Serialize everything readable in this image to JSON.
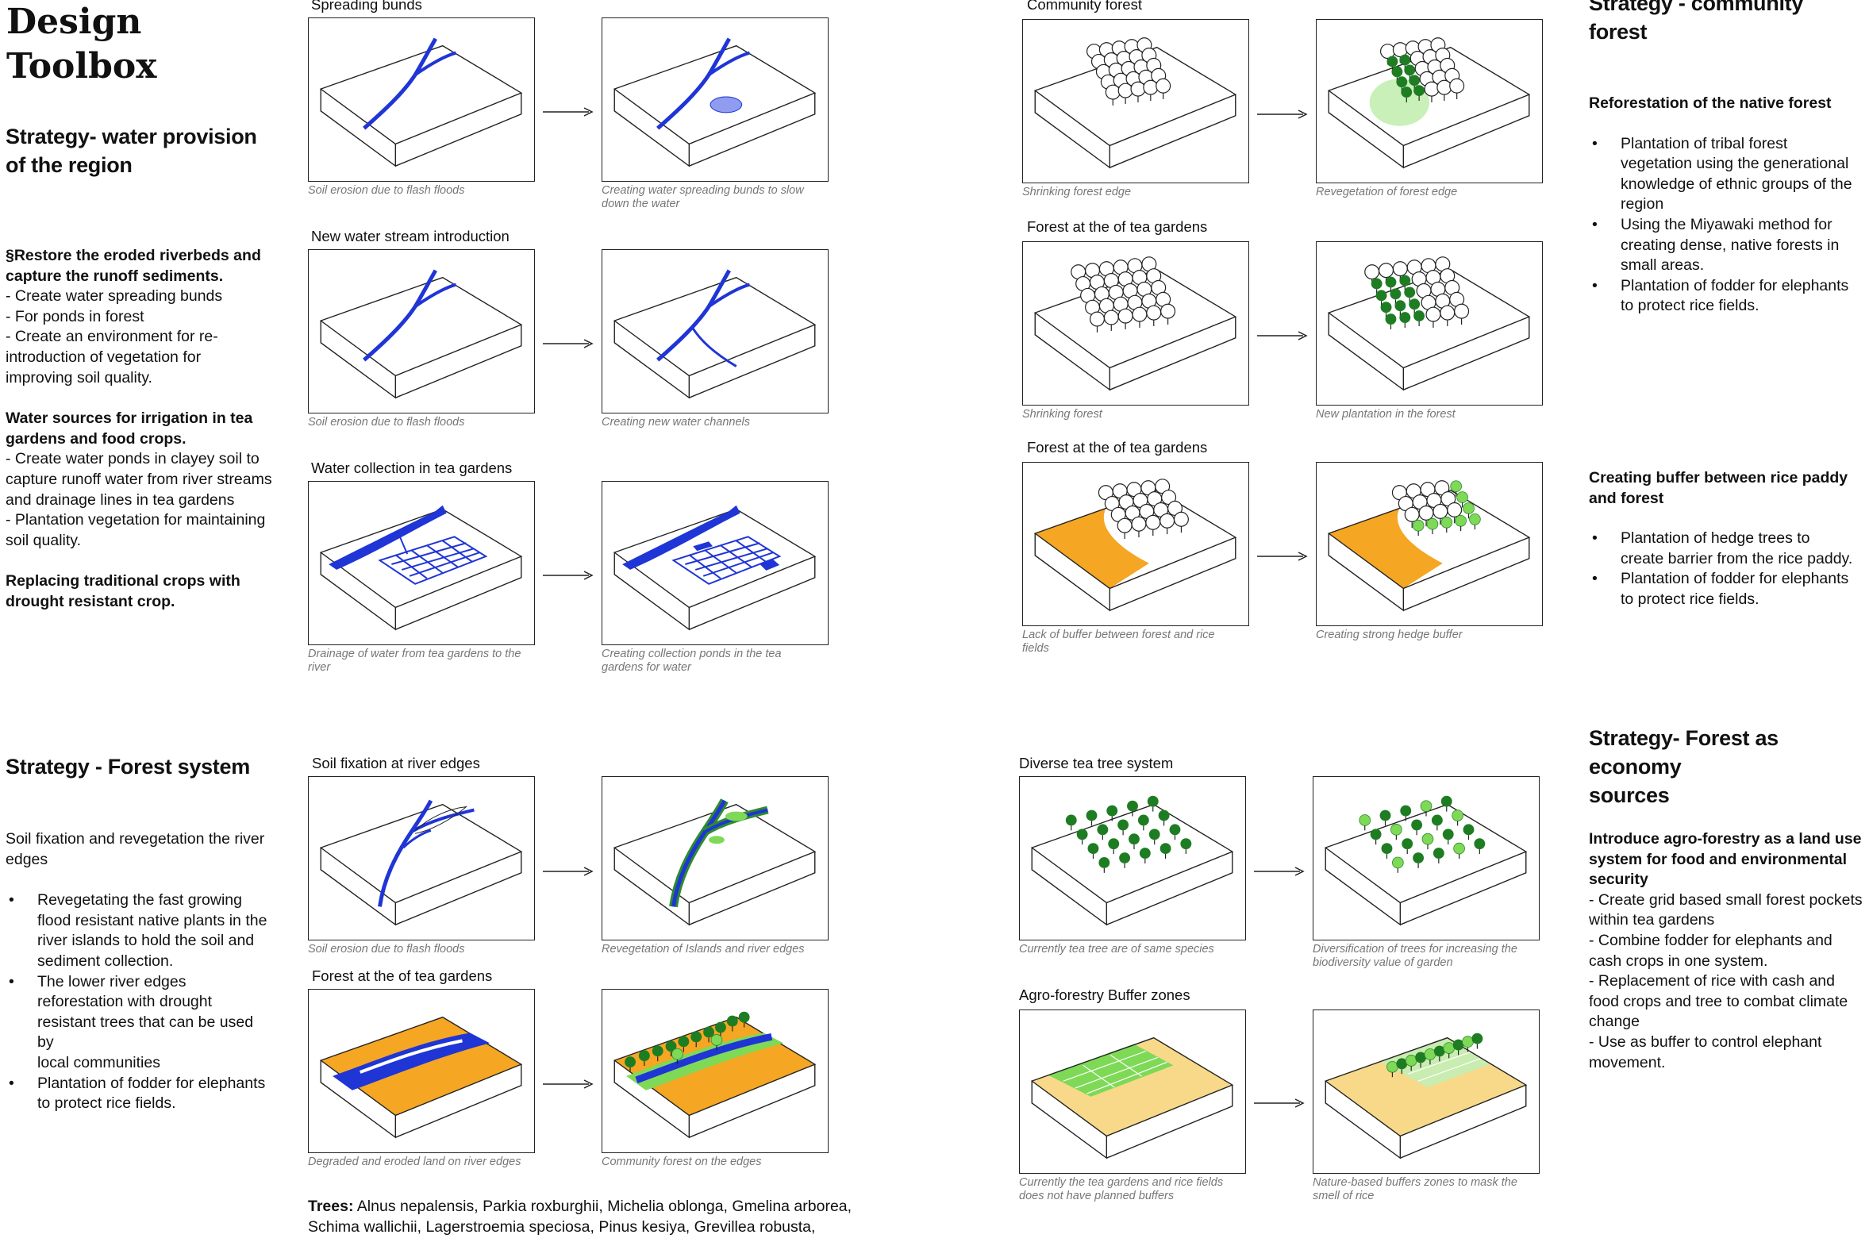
{
  "title": [
    "Design",
    "Toolbox"
  ],
  "left_top": {
    "heading": [
      "Strategy- water provision",
      "of the region"
    ],
    "p1": [
      "§Restore the eroded riverbeds and",
      "capture the runoff sediments."
    ],
    "p1_lines": [
      "- Create water spreading bunds",
      "- For ponds in forest",
      "- Create an environment for re-",
      "introduction of vegetation for",
      "improving soil quality."
    ],
    "p2": [
      "Water sources for irrigation in tea",
      "gardens and food crops."
    ],
    "p2_lines": [
      "- Create water ponds in clayey soil to",
      "capture runoff water from river streams",
      "and drainage lines in tea gardens",
      "- Plantation vegetation for maintaining",
      "soil quality."
    ],
    "p3": [
      "Replacing traditional crops with",
      "drought resistant crop."
    ]
  },
  "left_bottom": {
    "heading": "Strategy - Forest system",
    "intro": [
      "Soil fixation and revegetation the river",
      "edges"
    ],
    "bullets": [
      [
        "Revegetating the fast growing",
        "flood resistant native plants in the",
        "river islands to hold the soil and",
        "sediment collection."
      ],
      [
        "The lower river edges",
        "reforestation with drought",
        "resistant trees that can be used by",
        "local communities"
      ],
      [
        "Plantation of fodder for elephants",
        "to protect rice fields."
      ]
    ]
  },
  "col2": {
    "r1": {
      "label": "Spreading bunds",
      "cap_a": "Soil erosion due to flash floods",
      "cap_b": [
        "Creating water spreading bunds to slow",
        "down the water"
      ]
    },
    "r2": {
      "label": "New water stream introduction",
      "cap_a": "Soil erosion due to flash floods",
      "cap_b": "Creating new water channels"
    },
    "r3": {
      "label": "Water collection in tea gardens",
      "cap_a": [
        "Drainage of water from tea gardens to the",
        "river"
      ],
      "cap_b": [
        "Creating collection ponds in the tea",
        "gardens for water"
      ]
    },
    "r4": {
      "label": "Soil fixation at river edges",
      "cap_a": "Soil erosion due to flash floods",
      "cap_b": "Revegetation of Islands and river edges"
    },
    "r5": {
      "label": "Forest at the of tea gardens",
      "cap_a": "Degraded and eroded land on river edges",
      "cap_b": "Community forest on the edges"
    },
    "trees_label": "Trees:",
    "trees": [
      "Alnus nepalensis, Parkia roxburghii, Michelia oblonga, Gmelina arborea,",
      "Schima wallichii, Lagerstroemia speciosa, Pinus kesiya, Grevillea robusta,"
    ]
  },
  "col3": {
    "r1": {
      "label": "Community forest",
      "cap_a": "Shrinking forest edge",
      "cap_b": "Revegetation of forest edge"
    },
    "r2": {
      "label": "Forest at the of tea gardens",
      "cap_a": "Shrinking forest",
      "cap_b": "New plantation in the forest"
    },
    "r3": {
      "label": "Forest at the of tea gardens",
      "cap_a": [
        "Lack of buffer between forest and rice",
        "fields"
      ],
      "cap_b": "Creating strong hedge buffer"
    },
    "r4": {
      "label": "Diverse tea tree system",
      "cap_a": "Currently tea tree are of same species",
      "cap_b": [
        "Diversification of trees for increasing the",
        "biodiversity value of garden"
      ]
    },
    "r5": {
      "label": "Agro-forestry Buffer zones",
      "cap_a": [
        "Currently the tea gardens and rice fields",
        "does not have planned buffers"
      ],
      "cap_b": [
        "Nature-based buffers zones to mask the",
        "smell of rice"
      ]
    }
  },
  "right_top": {
    "heading": "Strategy - community forest",
    "sub1": "Reforestation of the native forest",
    "b1": [
      [
        "Plantation of  tribal forest",
        "vegetation using the generational",
        "knowledge of ethnic groups of the",
        "region"
      ],
      [
        "Using the Miyawaki method  for",
        "creating dense, native forests in",
        "small areas."
      ],
      [
        "Plantation of fodder for elephants",
        "to protect rice fields."
      ]
    ],
    "sub2": [
      "Creating buffer between rice paddy",
      "and forest"
    ],
    "b2": [
      [
        "Plantation of hedge trees to",
        "create barrier from the rice paddy."
      ],
      [
        "Plantation of fodder for elephants",
        "to protect rice fields."
      ]
    ]
  },
  "right_bottom": {
    "heading": [
      "Strategy- Forest as economy",
      "sources"
    ],
    "sub": [
      "Introduce agro-forestry as a land use",
      "system for food and environmental",
      "security"
    ],
    "lines": [
      "- Create grid based small forest pockets",
      "within tea gardens",
      "- Combine fodder for elephants and",
      "cash crops in one system.",
      "- Replacement of rice with cash and",
      "food crops and tree to combat climate",
      "change",
      "- Use as buffer to control elephant",
      "movement."
    ]
  },
  "colors": {
    "water": "#1f35d6",
    "sand": "#f5a623",
    "tree_dark": "#1e7d22",
    "tree_light": "#7ed957",
    "pale_sand": "#f8d98a"
  }
}
